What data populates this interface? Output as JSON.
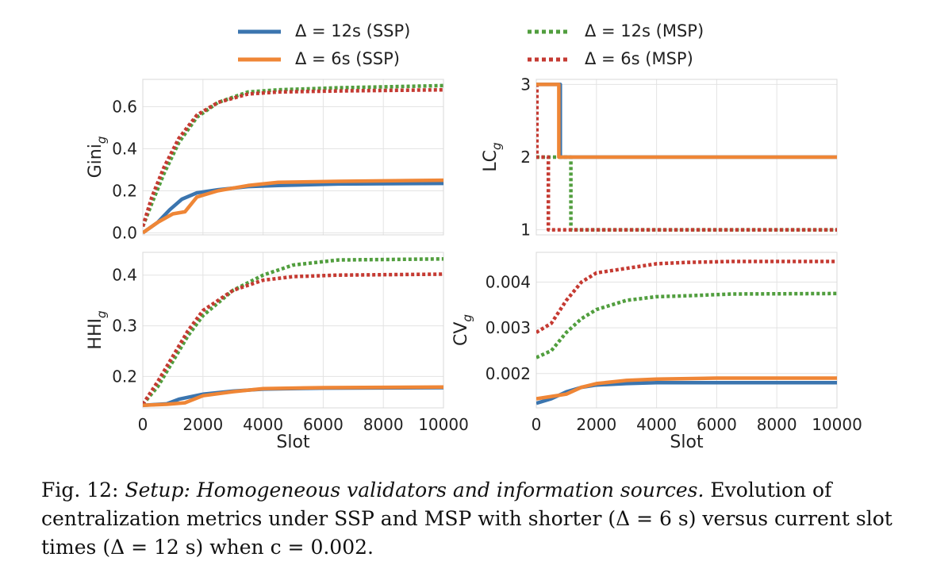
{
  "legend": [
    {
      "label": "Δ = 12s (SSP)",
      "color": "#3b75af",
      "style": "solid"
    },
    {
      "label": "Δ = 6s (SSP)",
      "color": "#ef8636",
      "style": "solid"
    },
    {
      "label": "Δ = 12s (MSP)",
      "color": "#519e3e",
      "style": "dotted"
    },
    {
      "label": "Δ = 6s (MSP)",
      "color": "#c53a32",
      "style": "dotted"
    }
  ],
  "caption": {
    "prefix": "Fig. 12:",
    "setup": "Setup: Homogeneous validators and information sources.",
    "text": "Evolution of centralization metrics under SSP and MSP with shorter (Δ = 6 s) versus current slot times (Δ = 12 s) when c = 0.002."
  },
  "chart_data": [
    {
      "type": "line",
      "ylabel": "Gini_g",
      "xlabel": "",
      "xlim": [
        0,
        10000
      ],
      "ylim": [
        -0.01,
        0.73
      ],
      "xticks": [
        0,
        2000,
        4000,
        6000,
        8000,
        10000
      ],
      "yticks": [
        0.0,
        0.2,
        0.4,
        0.6
      ],
      "ytick_labels": [
        "0.0",
        "0.2",
        "0.4",
        "0.6"
      ],
      "show_xtick_labels": false,
      "grid": true,
      "series": [
        {
          "name": "Δ = 12s (SSP)",
          "x": [
            0,
            500,
            900,
            1300,
            1800,
            2500,
            3500,
            4500,
            6500,
            10000
          ],
          "y": [
            0.0,
            0.05,
            0.11,
            0.16,
            0.19,
            0.205,
            0.22,
            0.225,
            0.232,
            0.235
          ]
        },
        {
          "name": "Δ = 6s (SSP)",
          "x": [
            0,
            500,
            1000,
            1400,
            1800,
            2500,
            3500,
            4500,
            6500,
            10000
          ],
          "y": [
            0.0,
            0.05,
            0.09,
            0.1,
            0.17,
            0.2,
            0.225,
            0.24,
            0.245,
            0.25
          ]
        },
        {
          "name": "Δ = 12s (MSP)",
          "x": [
            0,
            300,
            700,
            1200,
            1800,
            2500,
            3500,
            4500,
            6500,
            10000
          ],
          "y": [
            0.03,
            0.14,
            0.28,
            0.43,
            0.55,
            0.62,
            0.67,
            0.68,
            0.69,
            0.7
          ]
        },
        {
          "name": "Δ = 6s (MSP)",
          "x": [
            0,
            300,
            700,
            1200,
            1800,
            2500,
            3500,
            4500,
            6500,
            10000
          ],
          "y": [
            0.03,
            0.17,
            0.31,
            0.45,
            0.56,
            0.62,
            0.66,
            0.67,
            0.675,
            0.68
          ]
        }
      ]
    },
    {
      "type": "line",
      "ylabel": "LC_g",
      "xlabel": "",
      "xlim": [
        0,
        10000
      ],
      "ylim": [
        0.93,
        3.07
      ],
      "xticks": [
        0,
        2000,
        4000,
        6000,
        8000,
        10000
      ],
      "yticks": [
        1,
        2,
        3
      ],
      "ytick_labels": [
        "1",
        "2",
        "3"
      ],
      "show_xtick_labels": false,
      "grid": true,
      "series": [
        {
          "name": "Δ = 12s (SSP)",
          "x": [
            0,
            800,
            800,
            10000
          ],
          "y": [
            3,
            3,
            2,
            2
          ]
        },
        {
          "name": "Δ = 6s (SSP)",
          "x": [
            0,
            750,
            750,
            10000
          ],
          "y": [
            3,
            3,
            2,
            2
          ]
        },
        {
          "name": "Δ = 12s (MSP)",
          "x": [
            0,
            1150,
            1150,
            10000
          ],
          "y": [
            2,
            2,
            1,
            1
          ]
        },
        {
          "name": "Δ = 6s (MSP)",
          "x": [
            0,
            20,
            20,
            400,
            400,
            10000
          ],
          "y": [
            3,
            3,
            2,
            2,
            1,
            1
          ]
        }
      ]
    },
    {
      "type": "line",
      "ylabel": "HHI_g",
      "xlabel": "Slot",
      "xlim": [
        0,
        10000
      ],
      "ylim": [
        0.138,
        0.445
      ],
      "xticks": [
        0,
        2000,
        4000,
        6000,
        8000,
        10000
      ],
      "yticks": [
        0.2,
        0.3,
        0.4
      ],
      "ytick_labels": [
        "0.2",
        "0.3",
        "0.4"
      ],
      "show_xtick_labels": true,
      "grid": true,
      "series": [
        {
          "name": "Δ = 12s (SSP)",
          "x": [
            0,
            800,
            1200,
            2000,
            3000,
            4000,
            6000,
            10000
          ],
          "y": [
            0.143,
            0.146,
            0.155,
            0.165,
            0.171,
            0.175,
            0.177,
            0.178
          ]
        },
        {
          "name": "Δ = 6s (SSP)",
          "x": [
            0,
            800,
            1400,
            2000,
            3000,
            4000,
            6000,
            10000
          ],
          "y": [
            0.143,
            0.145,
            0.148,
            0.162,
            0.17,
            0.176,
            0.178,
            0.179
          ]
        },
        {
          "name": "Δ = 12s (MSP)",
          "x": [
            0,
            500,
            1000,
            1500,
            2000,
            3000,
            4000,
            5000,
            6500,
            10000
          ],
          "y": [
            0.145,
            0.18,
            0.23,
            0.28,
            0.32,
            0.37,
            0.4,
            0.42,
            0.43,
            0.432
          ]
        },
        {
          "name": "Δ = 6s (MSP)",
          "x": [
            0,
            500,
            1000,
            1500,
            2000,
            3000,
            4000,
            5000,
            6500,
            10000
          ],
          "y": [
            0.145,
            0.19,
            0.24,
            0.29,
            0.33,
            0.37,
            0.39,
            0.397,
            0.4,
            0.402
          ]
        }
      ]
    },
    {
      "type": "line",
      "ylabel": "CV_g",
      "xlabel": "Slot",
      "xlim": [
        0,
        10000
      ],
      "ylim": [
        0.00125,
        0.00465
      ],
      "xticks": [
        0,
        2000,
        4000,
        6000,
        8000,
        10000
      ],
      "yticks": [
        0.002,
        0.003,
        0.004
      ],
      "ytick_labels": [
        "0.002",
        "0.003",
        "0.004"
      ],
      "show_xtick_labels": true,
      "grid": true,
      "series": [
        {
          "name": "Δ = 12s (SSP)",
          "x": [
            0,
            500,
            1000,
            1500,
            2000,
            3000,
            4000,
            6000,
            10000
          ],
          "y": [
            0.00135,
            0.00145,
            0.0016,
            0.0017,
            0.00175,
            0.00178,
            0.0018,
            0.0018,
            0.0018
          ]
        },
        {
          "name": "Δ = 6s (SSP)",
          "x": [
            0,
            500,
            1000,
            1500,
            2000,
            3000,
            4000,
            6000,
            10000
          ],
          "y": [
            0.00145,
            0.0015,
            0.00155,
            0.0017,
            0.00178,
            0.00185,
            0.00188,
            0.0019,
            0.0019
          ]
        },
        {
          "name": "Δ = 12s (MSP)",
          "x": [
            0,
            500,
            1000,
            1500,
            2000,
            3000,
            4000,
            5000,
            6500,
            10000
          ],
          "y": [
            0.00235,
            0.0025,
            0.0029,
            0.0032,
            0.0034,
            0.0036,
            0.00368,
            0.0037,
            0.00374,
            0.00375
          ]
        },
        {
          "name": "Δ = 6s (MSP)",
          "x": [
            0,
            500,
            1000,
            1500,
            2000,
            3000,
            4000,
            5000,
            6500,
            10000
          ],
          "y": [
            0.0029,
            0.0031,
            0.0036,
            0.004,
            0.0042,
            0.0043,
            0.0044,
            0.00443,
            0.00445,
            0.00445
          ]
        }
      ]
    }
  ]
}
